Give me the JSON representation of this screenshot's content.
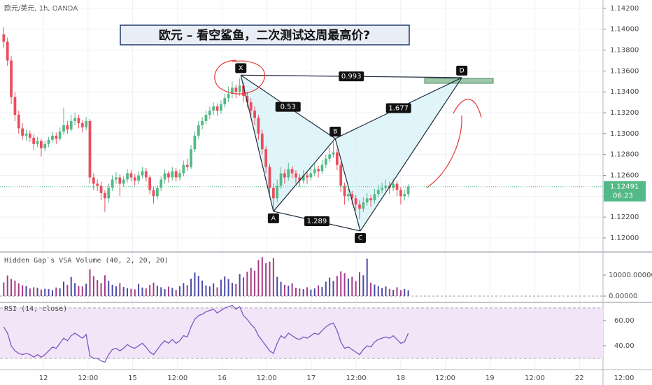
{
  "chart_data": {
    "type": "candlestick",
    "title": "欧元/美元, 1h, OANDA",
    "annotation": "欧元 – 看空鲨鱼，二次测试这周最高价?",
    "up_color": "#53b987",
    "down_color": "#eb4d5c",
    "xlim": [
      -1,
      160
    ],
    "xticks": [
      {
        "value": 10.6,
        "label": "12"
      },
      {
        "value": 22.5,
        "label": "12:00"
      },
      {
        "value": 34.4,
        "label": "15"
      },
      {
        "value": 46.4,
        "label": "12:00"
      },
      {
        "value": 58.3,
        "label": "16"
      },
      {
        "value": 70.2,
        "label": "12:00"
      },
      {
        "value": 82.1,
        "label": "17"
      },
      {
        "value": 94.1,
        "label": "12:00"
      },
      {
        "value": 106.0,
        "label": "18"
      },
      {
        "value": 117.9,
        "label": "12:00"
      },
      {
        "value": 129.8,
        "label": "19"
      },
      {
        "value": 141.8,
        "label": "12:00"
      },
      {
        "value": 153.7,
        "label": "22"
      },
      {
        "value": 165.6,
        "label": "12:00"
      }
    ],
    "ylim": [
      1.11879,
      1.1428
    ],
    "yticks": [
      {
        "value": 1.12,
        "label": "1.12000"
      },
      {
        "value": 1.122,
        "label": "1.12200"
      },
      {
        "value": 1.124,
        "label": "1.12400"
      },
      {
        "value": 1.126,
        "label": "1.12600"
      },
      {
        "value": 1.128,
        "label": "1.12800"
      },
      {
        "value": 1.13,
        "label": "1.13000"
      },
      {
        "value": 1.132,
        "label": "1.13200"
      },
      {
        "value": 1.134,
        "label": "1.13400"
      },
      {
        "value": 1.136,
        "label": "1.13600"
      },
      {
        "value": 1.138,
        "label": "1.13800"
      },
      {
        "value": 1.14,
        "label": "1.14000"
      },
      {
        "value": 1.142,
        "label": "1.14200"
      }
    ],
    "grid": true,
    "countdown": "06:23",
    "ohlc": [
      [
        1.1395,
        1.1402,
        1.1382,
        1.1388
      ],
      [
        1.1388,
        1.1392,
        1.1365,
        1.137
      ],
      [
        1.137,
        1.1374,
        1.1328,
        1.1335
      ],
      [
        1.1335,
        1.134,
        1.1312,
        1.1318
      ],
      [
        1.1318,
        1.1322,
        1.13,
        1.1305
      ],
      [
        1.1305,
        1.131,
        1.1294,
        1.1298
      ],
      [
        1.1298,
        1.1304,
        1.1293,
        1.13
      ],
      [
        1.13,
        1.1303,
        1.1292,
        1.1296
      ],
      [
        1.1296,
        1.1299,
        1.1284,
        1.129
      ],
      [
        1.129,
        1.1297,
        1.1287,
        1.1293
      ],
      [
        1.1293,
        1.1295,
        1.1278,
        1.1286
      ],
      [
        1.1286,
        1.1293,
        1.1283,
        1.129
      ],
      [
        1.129,
        1.1297,
        1.1287,
        1.1294
      ],
      [
        1.1294,
        1.1302,
        1.1291,
        1.1298
      ],
      [
        1.1298,
        1.1301,
        1.129,
        1.1295
      ],
      [
        1.1295,
        1.1306,
        1.1293,
        1.1302
      ],
      [
        1.1302,
        1.1325,
        1.1299,
        1.1308
      ],
      [
        1.1308,
        1.1312,
        1.13,
        1.1304
      ],
      [
        1.1304,
        1.1318,
        1.1302,
        1.1312
      ],
      [
        1.1312,
        1.132,
        1.1308,
        1.1315
      ],
      [
        1.1315,
        1.1318,
        1.1305,
        1.131
      ],
      [
        1.131,
        1.1313,
        1.1301,
        1.1306
      ],
      [
        1.1306,
        1.1316,
        1.1303,
        1.1312
      ],
      [
        1.1312,
        1.1314,
        1.1252,
        1.1258
      ],
      [
        1.1258,
        1.1262,
        1.1246,
        1.1252
      ],
      [
        1.1252,
        1.1256,
        1.1245,
        1.125
      ],
      [
        1.125,
        1.1254,
        1.1236,
        1.1243
      ],
      [
        1.1243,
        1.1246,
        1.1225,
        1.1238
      ],
      [
        1.1238,
        1.1252,
        1.1234,
        1.1248
      ],
      [
        1.1248,
        1.126,
        1.1245,
        1.1256
      ],
      [
        1.1256,
        1.1263,
        1.1252,
        1.1258
      ],
      [
        1.1258,
        1.1261,
        1.124,
        1.1252
      ],
      [
        1.1252,
        1.1259,
        1.1249,
        1.1256
      ],
      [
        1.1256,
        1.1266,
        1.1253,
        1.1262
      ],
      [
        1.1262,
        1.1265,
        1.1254,
        1.1258
      ],
      [
        1.1258,
        1.1261,
        1.125,
        1.1255
      ],
      [
        1.1255,
        1.1264,
        1.1252,
        1.126
      ],
      [
        1.126,
        1.1268,
        1.1257,
        1.1264
      ],
      [
        1.1264,
        1.1267,
        1.1254,
        1.1258
      ],
      [
        1.1258,
        1.126,
        1.1242,
        1.1246
      ],
      [
        1.1246,
        1.1249,
        1.1233,
        1.124
      ],
      [
        1.124,
        1.1251,
        1.1237,
        1.1248
      ],
      [
        1.1248,
        1.1259,
        1.1245,
        1.1256
      ],
      [
        1.1256,
        1.1266,
        1.1252,
        1.1262
      ],
      [
        1.1262,
        1.1264,
        1.1253,
        1.1258
      ],
      [
        1.1258,
        1.1268,
        1.1255,
        1.1264
      ],
      [
        1.1264,
        1.1267,
        1.1254,
        1.1258
      ],
      [
        1.1258,
        1.1266,
        1.1255,
        1.1262
      ],
      [
        1.1262,
        1.1274,
        1.1259,
        1.127
      ],
      [
        1.127,
        1.1276,
        1.1264,
        1.1268
      ],
      [
        1.1268,
        1.1289,
        1.1266,
        1.1285
      ],
      [
        1.1285,
        1.1302,
        1.1282,
        1.1298
      ],
      [
        1.1298,
        1.1312,
        1.1295,
        1.1308
      ],
      [
        1.1308,
        1.1316,
        1.1304,
        1.1312
      ],
      [
        1.1312,
        1.1322,
        1.1309,
        1.1318
      ],
      [
        1.1318,
        1.1326,
        1.1314,
        1.1322
      ],
      [
        1.1322,
        1.133,
        1.1318,
        1.1326
      ],
      [
        1.1326,
        1.1329,
        1.1317,
        1.1322
      ],
      [
        1.1322,
        1.1332,
        1.1319,
        1.1328
      ],
      [
        1.1328,
        1.1338,
        1.1325,
        1.1334
      ],
      [
        1.1334,
        1.1345,
        1.133,
        1.1338
      ],
      [
        1.1338,
        1.135,
        1.1334,
        1.1344
      ],
      [
        1.1344,
        1.1347,
        1.1334,
        1.134
      ],
      [
        1.134,
        1.1353,
        1.1336,
        1.1346
      ],
      [
        1.1346,
        1.1349,
        1.133,
        1.1336
      ],
      [
        1.1336,
        1.134,
        1.1325,
        1.133
      ],
      [
        1.133,
        1.1334,
        1.1316,
        1.1322
      ],
      [
        1.1322,
        1.1326,
        1.1308,
        1.1315
      ],
      [
        1.1315,
        1.1318,
        1.1294,
        1.13
      ],
      [
        1.13,
        1.1304,
        1.128,
        1.1285
      ],
      [
        1.1285,
        1.1288,
        1.1262,
        1.1268
      ],
      [
        1.1268,
        1.1271,
        1.1242,
        1.1248
      ],
      [
        1.1248,
        1.1252,
        1.1227,
        1.1238
      ],
      [
        1.1238,
        1.1256,
        1.1234,
        1.125
      ],
      [
        1.125,
        1.1268,
        1.1247,
        1.1262
      ],
      [
        1.1262,
        1.1266,
        1.1252,
        1.1258
      ],
      [
        1.1258,
        1.1272,
        1.1255,
        1.1266
      ],
      [
        1.1266,
        1.1269,
        1.1257,
        1.1262
      ],
      [
        1.1262,
        1.1265,
        1.1252,
        1.1258
      ],
      [
        1.1258,
        1.1261,
        1.1249,
        1.1255
      ],
      [
        1.1255,
        1.1265,
        1.1252,
        1.126
      ],
      [
        1.126,
        1.1263,
        1.1252,
        1.1258
      ],
      [
        1.1258,
        1.1268,
        1.1255,
        1.1262
      ],
      [
        1.1262,
        1.1271,
        1.1259,
        1.1266
      ],
      [
        1.1266,
        1.1269,
        1.1258,
        1.1264
      ],
      [
        1.1264,
        1.1275,
        1.1261,
        1.127
      ],
      [
        1.127,
        1.128,
        1.1267,
        1.1276
      ],
      [
        1.1276,
        1.1286,
        1.1273,
        1.128
      ],
      [
        1.128,
        1.1292,
        1.1277,
        1.1282
      ],
      [
        1.1282,
        1.1285,
        1.1265,
        1.127
      ],
      [
        1.127,
        1.1273,
        1.1244,
        1.125
      ],
      [
        1.125,
        1.1253,
        1.1232,
        1.124
      ],
      [
        1.124,
        1.1247,
        1.1235,
        1.1242
      ],
      [
        1.1242,
        1.1245,
        1.1232,
        1.1238
      ],
      [
        1.1238,
        1.1241,
        1.1226,
        1.1232
      ],
      [
        1.1232,
        1.1236,
        1.1218,
        1.1228
      ],
      [
        1.1228,
        1.1239,
        1.1225,
        1.1234
      ],
      [
        1.1234,
        1.1243,
        1.1231,
        1.1238
      ],
      [
        1.1238,
        1.1241,
        1.123,
        1.1236
      ],
      [
        1.1236,
        1.1247,
        1.1233,
        1.1242
      ],
      [
        1.1242,
        1.1251,
        1.1239,
        1.1246
      ],
      [
        1.1246,
        1.1253,
        1.1243,
        1.1248
      ],
      [
        1.1248,
        1.1256,
        1.1245,
        1.125
      ],
      [
        1.125,
        1.1254,
        1.1242,
        1.1248
      ],
      [
        1.1248,
        1.1257,
        1.1245,
        1.1252
      ],
      [
        1.1252,
        1.1255,
        1.124,
        1.1246
      ],
      [
        1.1246,
        1.1249,
        1.1232,
        1.124
      ],
      [
        1.124,
        1.1246,
        1.1236,
        1.1242
      ],
      [
        1.1242,
        1.12515,
        1.1239,
        1.12491
      ]
    ],
    "pattern": {
      "color": "#1e2a3a",
      "fill": "#d8f3f8",
      "points": [
        {
          "label": "X",
          "x": 63.3,
          "y": 1.1356
        },
        {
          "label": "A",
          "x": 72.0,
          "y": 1.12255
        },
        {
          "label": "B",
          "x": 88.5,
          "y": 1.12952
        },
        {
          "label": "C",
          "x": 95.2,
          "y": 1.12067
        },
        {
          "label": "D",
          "x": 122.3,
          "y": 1.13536
        }
      ],
      "ratios": [
        0.53,
        1.289,
        1.677,
        0.993
      ]
    },
    "volume": {
      "title": "Hidden Gap`s VSA Volume (40, 2, 20, 20)",
      "up_color": "#4a4aa6",
      "down_color": "#a43b86",
      "ylim": [
        -3000,
        20333
      ],
      "yticks": [
        {
          "value": 0,
          "label": "0.00000"
        },
        {
          "value": 10000,
          "label": "10000.00000"
        }
      ],
      "values": [
        6500,
        9800,
        8200,
        7400,
        6100,
        5200,
        4800,
        3600,
        4200,
        3900,
        3100,
        3500,
        3300,
        2800,
        4100,
        3700,
        6900,
        5300,
        9100,
        6200,
        4800,
        4600,
        5900,
        12800,
        9500,
        7600,
        6200,
        9900,
        7300,
        5400,
        4700,
        6100,
        4300,
        3800,
        3500,
        3200,
        5800,
        4100,
        3700,
        5300,
        6400,
        5000,
        4200,
        3300,
        4500,
        3900,
        3000,
        4700,
        6200,
        5200,
        8300,
        11200,
        9600,
        7400,
        5100,
        4600,
        6100,
        4200,
        7800,
        9400,
        8100,
        6300,
        5800,
        10500,
        8900,
        11600,
        13400,
        12100,
        17200,
        18600,
        15700,
        16400,
        18100,
        9200,
        6800,
        5400,
        4900,
        6100,
        4000,
        3600,
        3300,
        4200,
        3100,
        3700,
        5100,
        4300,
        6900,
        8800,
        7200,
        9600,
        11800,
        10900,
        8400,
        9200,
        7100,
        11400,
        9900,
        17800,
        6400,
        5500,
        4800,
        3900,
        4600,
        3400,
        3000,
        4200,
        2900,
        3400,
        2800
      ]
    },
    "rsi": {
      "title": "RSI (14, close)",
      "color": "#7e57c2",
      "band_color": "#f3e5f8",
      "ylim": [
        21.1,
        74.4
      ],
      "bands": [
        30,
        70
      ],
      "yticks": [
        {
          "value": 40,
          "label": "40.00"
        },
        {
          "value": 60,
          "label": "60.00"
        }
      ],
      "values": [
        55,
        50,
        40,
        36,
        34,
        33,
        34,
        33,
        31,
        33,
        31,
        33,
        36,
        39,
        38,
        42,
        46,
        44,
        48,
        50,
        48,
        46,
        49,
        32,
        30,
        30,
        28,
        27,
        33,
        37,
        38,
        36,
        38,
        41,
        39,
        38,
        40,
        42,
        39,
        35,
        33,
        37,
        41,
        44,
        42,
        45,
        42,
        44,
        48,
        47,
        55,
        61,
        64,
        65,
        67,
        68,
        69,
        66,
        68,
        70,
        71,
        72,
        69,
        71,
        64,
        61,
        57,
        54,
        48,
        44,
        40,
        36,
        34,
        42,
        48,
        46,
        50,
        48,
        46,
        45,
        47,
        46,
        48,
        50,
        49,
        52,
        55,
        57,
        58,
        52,
        43,
        38,
        39,
        37,
        35,
        33,
        37,
        40,
        39,
        43,
        45,
        46,
        47,
        46,
        48,
        45,
        42,
        43,
        50
      ]
    }
  }
}
